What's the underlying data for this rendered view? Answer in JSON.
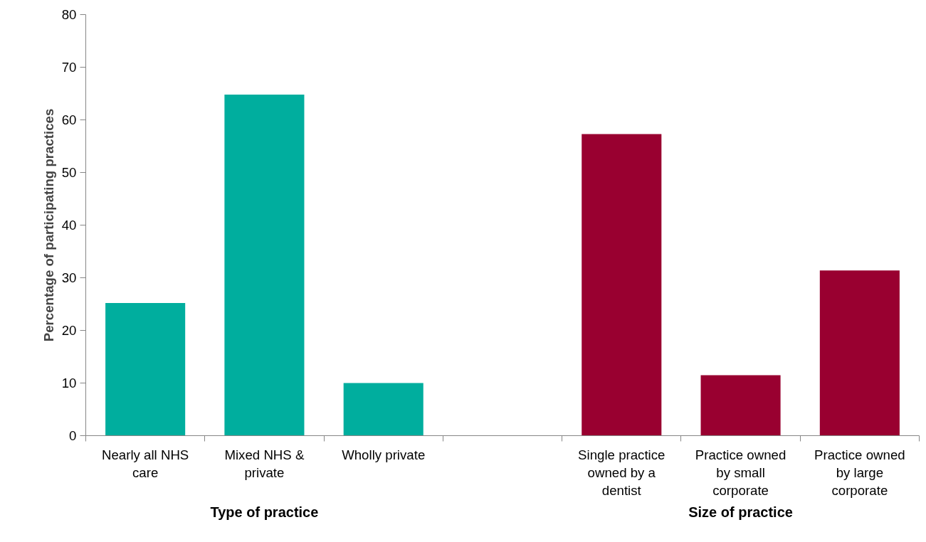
{
  "chart_data": {
    "type": "bar",
    "ylabel": "Percentage of participating practices",
    "categories": [
      "Nearly all NHS care",
      "Mixed NHS & private",
      "Wholly private",
      null,
      "Single practice owned by a dentist",
      "Practice owned by small corporate",
      "Practice owned by large corporate"
    ],
    "values": [
      25.2,
      64.8,
      10.0,
      null,
      57.3,
      11.5,
      31.4
    ],
    "colors": [
      "#00ae9e",
      "#00ae9e",
      "#00ae9e",
      "#00ae9e",
      "#990030",
      "#990030",
      "#990030"
    ],
    "ylim": [
      0,
      80
    ],
    "yticks": [
      0,
      10,
      20,
      30,
      40,
      50,
      60,
      70,
      80
    ],
    "grid": false,
    "annotations": [
      "Type of practice",
      "Size of practice"
    ]
  }
}
